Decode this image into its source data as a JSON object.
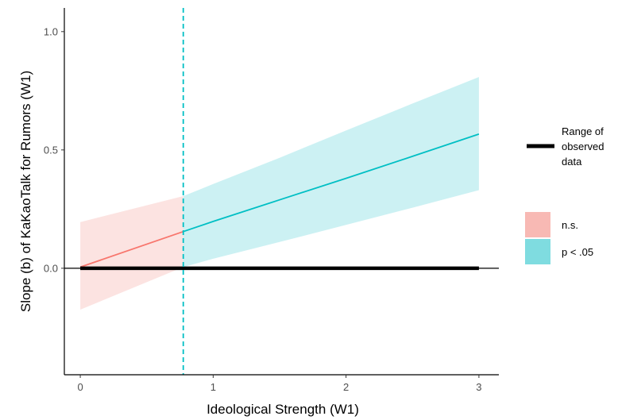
{
  "chart_data": {
    "type": "line",
    "xlabel": "Ideological Strength (W1)",
    "ylabel": "Slope (b) of KaKaoTalk for Rumors (W1)",
    "xlim": [
      -0.12,
      3.15
    ],
    "ylim": [
      -0.45,
      1.1
    ],
    "x_ticks": [
      0,
      1,
      2,
      3
    ],
    "x_tick_labels": [
      "0",
      "1",
      "2",
      "3"
    ],
    "y_ticks": [
      0.0,
      0.5,
      1.0
    ],
    "y_tick_labels": [
      "0.0",
      "0.5",
      "1.0"
    ],
    "jn_threshold": 0.775,
    "series": [
      {
        "name": "n.s.",
        "color": "#F8766D",
        "band_color": "#F8B9B4",
        "x": [
          0,
          0.775
        ],
        "y": [
          0.005,
          0.155
        ],
        "lower": [
          -0.175,
          0.005
        ],
        "upper": [
          0.195,
          0.305
        ]
      },
      {
        "name": "p < .05",
        "color": "#00BFC4",
        "band_color": "#7FDCE0",
        "x": [
          0.775,
          1.0,
          1.5,
          2.0,
          2.5,
          3.0
        ],
        "y": [
          0.155,
          0.198,
          0.289,
          0.38,
          0.473,
          0.567
        ],
        "lower": [
          0.005,
          0.04,
          0.111,
          0.183,
          0.256,
          0.33
        ],
        "upper": [
          0.305,
          0.356,
          0.467,
          0.582,
          0.696,
          0.808
        ]
      }
    ],
    "observed_range": {
      "x": [
        0,
        3
      ],
      "y": 0.0
    },
    "grid": false,
    "legend": {
      "position": "right",
      "range_label": [
        "Range of",
        "observed",
        "data"
      ],
      "items": [
        "n.s.",
        "p < .05"
      ]
    }
  }
}
